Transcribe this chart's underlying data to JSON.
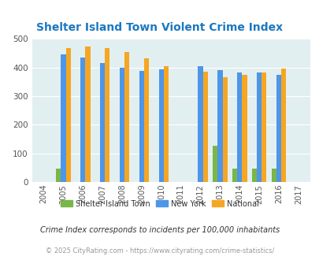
{
  "title": "Shelter Island Town Violent Crime Index",
  "years": [
    2004,
    2005,
    2006,
    2007,
    2008,
    2009,
    2010,
    2011,
    2012,
    2013,
    2014,
    2015,
    2016,
    2017
  ],
  "shelter_island": [
    0,
    47,
    0,
    0,
    0,
    0,
    0,
    0,
    0,
    128,
    47,
    47,
    47,
    0
  ],
  "new_york": [
    0,
    445,
    435,
    415,
    400,
    388,
    394,
    0,
    406,
    391,
    384,
    382,
    376,
    0
  ],
  "national": [
    0,
    469,
    473,
    467,
    455,
    432,
    405,
    0,
    387,
    366,
    376,
    383,
    396,
    0
  ],
  "color_shelter": "#7ab648",
  "color_newyork": "#4d96e8",
  "color_national": "#f5a623",
  "bg_color": "#e2eff1",
  "ylim": [
    0,
    500
  ],
  "yticks": [
    0,
    100,
    200,
    300,
    400,
    500
  ],
  "title_color": "#1a78c2",
  "footer_note": "Crime Index corresponds to incidents per 100,000 inhabitants",
  "copyright": "© 2025 CityRating.com - https://www.cityrating.com/crime-statistics/",
  "legend_labels": [
    "Shelter Island Town",
    "New York",
    "National"
  ],
  "bar_width": 0.25
}
